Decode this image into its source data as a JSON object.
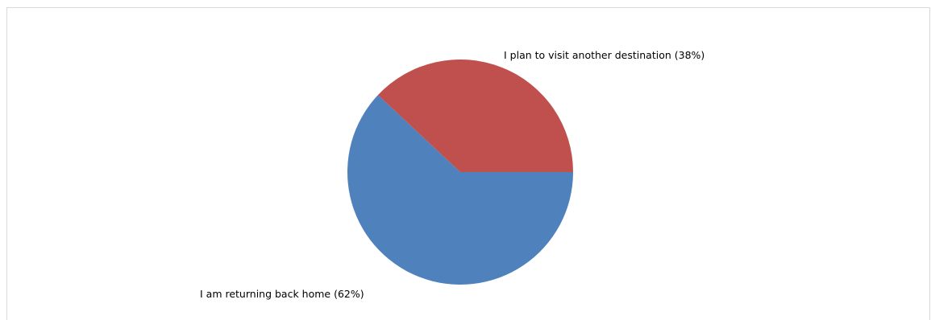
{
  "chart_data": {
    "type": "pie",
    "categories": [
      "I am returning back home",
      "I plan to visit another destination"
    ],
    "values": [
      62,
      38
    ],
    "labels": [
      "I am returning back home (62%)",
      "I plan to visit another destination (38%)"
    ],
    "colors": [
      "#4f81bd",
      "#c0504d"
    ],
    "title": "",
    "legend": "none"
  }
}
